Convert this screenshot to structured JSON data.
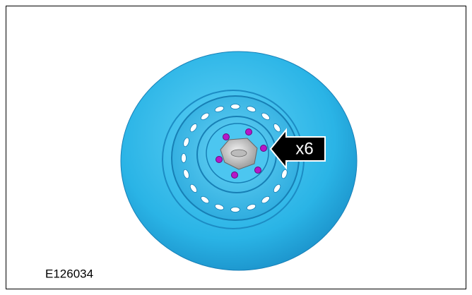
{
  "callout": {
    "label": "x6"
  },
  "figure_id": "E126034"
}
